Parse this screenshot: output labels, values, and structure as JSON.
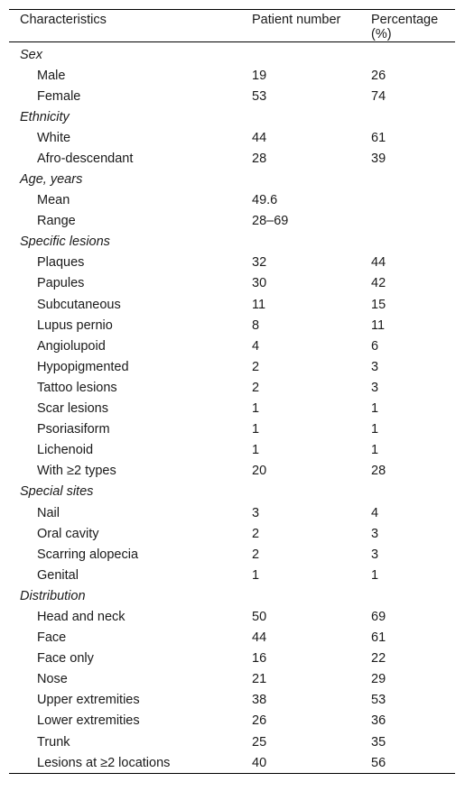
{
  "header": {
    "characteristics": "Characteristics",
    "patient_number": "Patient number",
    "percentage": "Percentage (%)"
  },
  "sections": [
    {
      "title": "Sex",
      "rows": [
        {
          "label": "Male",
          "n": "19",
          "pct": "26"
        },
        {
          "label": "Female",
          "n": "53",
          "pct": "74"
        }
      ]
    },
    {
      "title": "Ethnicity",
      "rows": [
        {
          "label": "White",
          "n": "44",
          "pct": "61"
        },
        {
          "label": "Afro-descendant",
          "n": "28",
          "pct": "39"
        }
      ]
    },
    {
      "title": "Age, years",
      "rows": [
        {
          "label": "Mean",
          "n": "49.6",
          "pct": ""
        },
        {
          "label": "Range",
          "n": "28–69",
          "pct": ""
        }
      ]
    },
    {
      "title": "Specific lesions",
      "rows": [
        {
          "label": "Plaques",
          "n": "32",
          "pct": "44"
        },
        {
          "label": "Papules",
          "n": "30",
          "pct": "42"
        },
        {
          "label": "Subcutaneous",
          "n": "11",
          "pct": "15"
        },
        {
          "label": "Lupus pernio",
          "n": "8",
          "pct": "11"
        },
        {
          "label": "Angiolupoid",
          "n": "4",
          "pct": "6"
        },
        {
          "label": "Hypopigmented",
          "n": "2",
          "pct": "3"
        },
        {
          "label": "Tattoo lesions",
          "n": "2",
          "pct": "3"
        },
        {
          "label": "Scar lesions",
          "n": "1",
          "pct": "1"
        },
        {
          "label": "Psoriasiform",
          "n": "1",
          "pct": "1"
        },
        {
          "label": "Lichenoid",
          "n": "1",
          "pct": "1"
        },
        {
          "label": "With ≥2 types",
          "n": "20",
          "pct": "28"
        }
      ]
    },
    {
      "title": "Special sites",
      "rows": [
        {
          "label": "Nail",
          "n": "3",
          "pct": "4"
        },
        {
          "label": "Oral cavity",
          "n": "2",
          "pct": "3"
        },
        {
          "label": "Scarring alopecia",
          "n": "2",
          "pct": "3"
        },
        {
          "label": "Genital",
          "n": "1",
          "pct": "1"
        }
      ]
    },
    {
      "title": "Distribution",
      "rows": [
        {
          "label": "Head and neck",
          "n": "50",
          "pct": "69"
        },
        {
          "label": "Face",
          "n": "44",
          "pct": "61"
        },
        {
          "label": "Face only",
          "n": "16",
          "pct": "22"
        },
        {
          "label": "Nose",
          "n": "21",
          "pct": "29"
        },
        {
          "label": "Upper extremities",
          "n": "38",
          "pct": "53"
        },
        {
          "label": "Lower extremities",
          "n": "26",
          "pct": "36"
        },
        {
          "label": "Trunk",
          "n": "25",
          "pct": "35"
        },
        {
          "label": "Lesions at ≥2 locations",
          "n": "40",
          "pct": "56"
        }
      ]
    }
  ]
}
